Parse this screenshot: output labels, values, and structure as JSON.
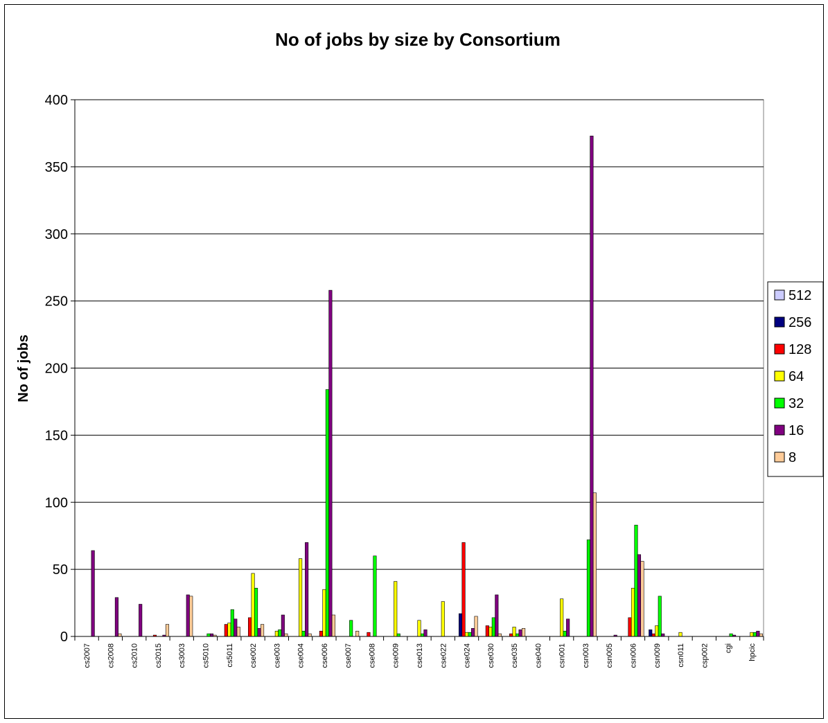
{
  "chart_data": {
    "type": "bar",
    "title": "No of jobs by size by Consortium",
    "xlabel": "",
    "ylabel": "No of jobs",
    "ylim": [
      0,
      400
    ],
    "yticks": [
      0,
      50,
      100,
      150,
      200,
      250,
      300,
      350,
      400
    ],
    "grid": true,
    "legend_position": "right",
    "categories": [
      "cs2007",
      "cs2008",
      "cs2010",
      "cs2015",
      "cs3003",
      "cs5010",
      "cs5011",
      "cse002",
      "cse003",
      "cse004",
      "cse006",
      "cse007",
      "cse008",
      "cse009",
      "cse013",
      "cse022",
      "cse024",
      "cse030",
      "cse035",
      "cse040",
      "csn001",
      "csn003",
      "csn005",
      "csn006",
      "csn009",
      "csn011",
      "csp002",
      "cgi",
      "hpcic"
    ],
    "tick_labels": [
      "cs2007",
      "cs2008",
      "cs2010",
      "cs2015",
      "cs3003",
      "cs5010",
      "cs5011",
      "cse002",
      "cse003",
      "cse004",
      "cse006",
      "cse007",
      "cse008",
      "cse009",
      "cse013",
      "cse022",
      "cse024",
      "cse030",
      "cse035",
      "cse040",
      "csn001",
      "csn003",
      "csn005",
      "csn006",
      "csn009",
      "csn011",
      "csp002",
      "cgi",
      "hpcic"
    ],
    "series": [
      {
        "name": "512",
        "color": "#ccccff",
        "values": [
          0,
          0,
          0,
          0,
          0,
          0,
          0,
          0,
          0,
          0,
          0,
          0,
          0,
          0,
          0,
          0,
          0,
          0,
          0,
          0,
          0,
          0,
          0,
          0,
          0,
          0,
          0,
          0,
          0
        ]
      },
      {
        "name": "256",
        "color": "#000080",
        "values": [
          0,
          0,
          0,
          0,
          0,
          0,
          0,
          0,
          0,
          0,
          0,
          0,
          0,
          0,
          0,
          0,
          17,
          0,
          0,
          0,
          0,
          0,
          0,
          0,
          5,
          0,
          0,
          0,
          0
        ]
      },
      {
        "name": "128",
        "color": "#ff0000",
        "values": [
          0,
          0,
          0,
          1,
          0,
          0,
          9,
          14,
          0,
          0,
          4,
          0,
          3,
          0,
          0,
          0,
          70,
          8,
          2,
          0,
          0,
          0,
          0,
          14,
          2,
          0,
          0,
          0,
          0
        ]
      },
      {
        "name": "64",
        "color": "#ffff00",
        "values": [
          0,
          0,
          0,
          0,
          0,
          0,
          10,
          47,
          4,
          58,
          35,
          0,
          0,
          41,
          12,
          26,
          3,
          7,
          7,
          0,
          28,
          0,
          0,
          36,
          8,
          3,
          0,
          0,
          3
        ]
      },
      {
        "name": "32",
        "color": "#00ff00",
        "values": [
          0,
          0,
          0,
          0,
          0,
          2,
          20,
          36,
          5,
          4,
          184,
          12,
          60,
          2,
          2,
          0,
          3,
          14,
          2,
          0,
          4,
          72,
          0,
          83,
          30,
          0,
          0,
          2,
          3
        ]
      },
      {
        "name": "16",
        "color": "#800080",
        "values": [
          64,
          29,
          24,
          1,
          31,
          2,
          13,
          6,
          16,
          70,
          258,
          0,
          0,
          0,
          5,
          0,
          6,
          31,
          5,
          0,
          13,
          373,
          1,
          61,
          2,
          0,
          0,
          1,
          4
        ]
      },
      {
        "name": "8",
        "color": "#ffcc99",
        "values": [
          0,
          2,
          0,
          9,
          30,
          1,
          7,
          9,
          2,
          2,
          16,
          4,
          0,
          0,
          0,
          0,
          15,
          2,
          6,
          0,
          0,
          107,
          0,
          56,
          0,
          0,
          0,
          0,
          2
        ]
      }
    ]
  }
}
